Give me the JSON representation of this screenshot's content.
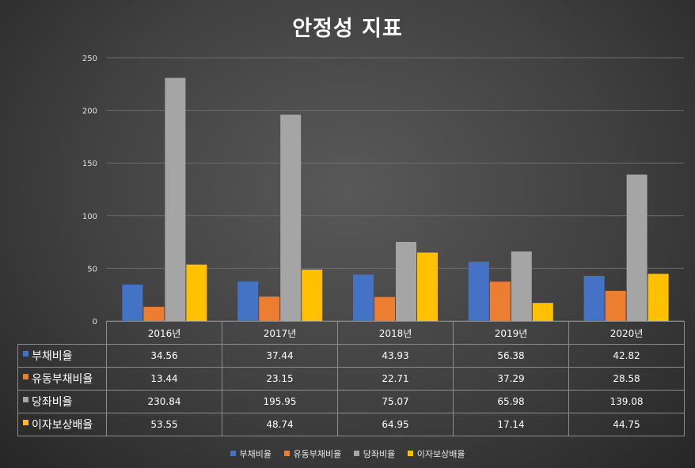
{
  "chart_data": {
    "type": "bar",
    "title": "안정성 지표",
    "categories": [
      "2016년",
      "2017년",
      "2018년",
      "2019년",
      "2020년"
    ],
    "series": [
      {
        "name": "부채비율",
        "color": "#4472C4",
        "values": [
          34.56,
          37.44,
          43.93,
          56.38,
          42.82
        ]
      },
      {
        "name": "유동부채비율",
        "color": "#ED7D31",
        "values": [
          13.44,
          23.15,
          22.71,
          37.29,
          28.58
        ]
      },
      {
        "name": "당좌비율",
        "color": "#A5A5A5",
        "values": [
          230.84,
          195.95,
          75.07,
          65.98,
          139.08
        ]
      },
      {
        "name": "이자보상배율",
        "color": "#FFC000",
        "values": [
          53.55,
          48.74,
          64.95,
          17.14,
          44.75
        ]
      }
    ],
    "value_labels": [
      [
        "34.56",
        "37.44",
        "43.93",
        "56.38",
        "42.82"
      ],
      [
        "13.44",
        "23.15",
        "22.71",
        "37.29",
        "28.58"
      ],
      [
        "230.84",
        "195.95",
        "75.07",
        "65.98",
        "139.08"
      ],
      [
        "53.55",
        "48.74",
        "64.95",
        "17.14",
        "44.75"
      ]
    ],
    "y_ticks": [
      "0",
      "50",
      "100",
      "150",
      "200",
      "250"
    ],
    "ylim": [
      0,
      250
    ],
    "grid": true,
    "legend": "bottom",
    "data_table": true
  }
}
